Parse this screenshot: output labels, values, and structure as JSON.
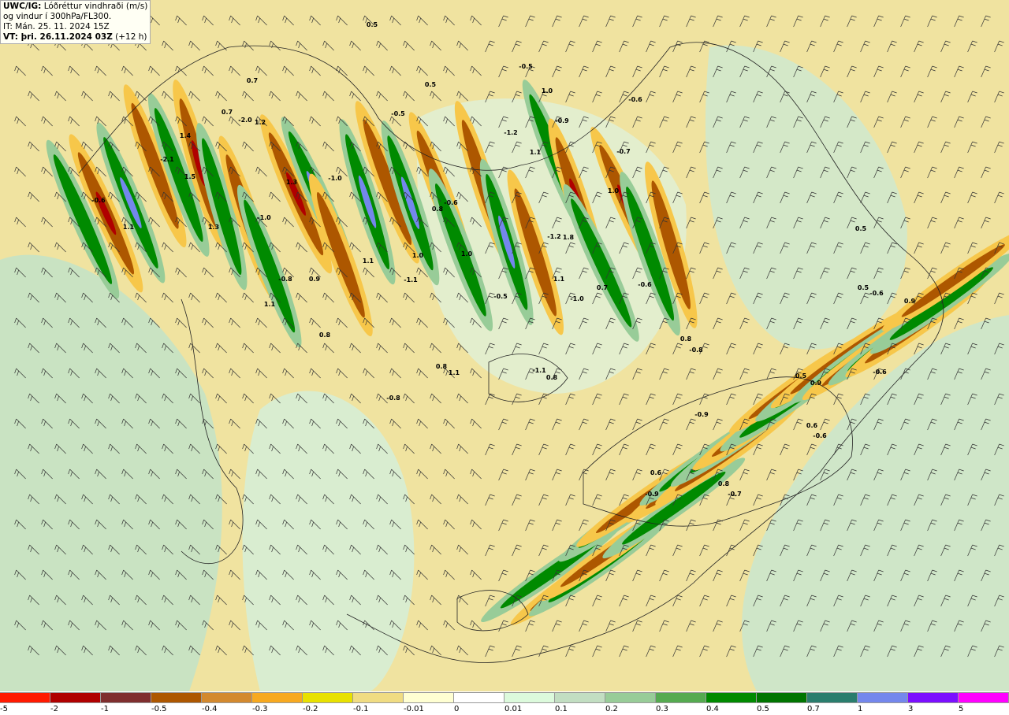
{
  "header": {
    "model_label": "UWC/IG:",
    "field_label": "Lóðréttur vindhraði (m/s)",
    "field_label_2": "og vindur í 300hPa/FL300.",
    "init_time": "IT: Mán. 25. 11. 2024 15Z",
    "valid_label": "VT: þri. 26.11.2024 03Z",
    "lead_time": "(+12 h)"
  },
  "legend": {
    "colors": [
      "#ff1a00",
      "#b00000",
      "#7f2e2e",
      "#ad5700",
      "#d3892e",
      "#f7a91f",
      "#e8e100",
      "#f0dc82",
      "#ffffd2",
      "#ffffff",
      "#dcfadc",
      "#c2dec2",
      "#98cc98",
      "#55aa50",
      "#008a00",
      "#007500",
      "#2a7d6d",
      "#7487ec",
      "#7b0fff",
      "#ff00ff"
    ],
    "labels": [
      "-5",
      "-2",
      "-1",
      "-0.5",
      "-0.4",
      "-0.3",
      "-0.2",
      "-0.1",
      "-0.01",
      "0",
      "0.01",
      "0.1",
      "0.2",
      "0.3",
      "0.4",
      "0.5",
      "0.7",
      "1",
      "3",
      "5"
    ]
  },
  "contour_labels": [
    "0.5",
    "-0.5",
    "0.5",
    "1.0",
    "-0.6",
    "0.7",
    "-0.5",
    "0.7",
    "-2.0",
    "1.2",
    "-0.9",
    "-1.2",
    "1.1",
    "-0.7",
    "1.4",
    "-2.1",
    "1.5",
    "1.3",
    "-1.0",
    "1.0",
    "-0.6",
    "0.8",
    "-0.6",
    "1.1",
    "1.3",
    "-1.0",
    "1.0",
    "1.0",
    "1.1",
    "-1.1",
    "1.8",
    "-1.2",
    "-0.8",
    "0.9",
    "0.5",
    "1.1",
    "-0.5",
    "1.1",
    "-1.0",
    "0.7",
    "-0.6",
    "0.5",
    "0.9",
    "-0.8",
    "0.8",
    "0.8",
    "-0.6",
    "0.8",
    "1.1",
    "-1.1",
    "0.8",
    "-0.8",
    "0.5",
    "0.9",
    "-0.6",
    "-0.9",
    "0.6",
    "0.8",
    "0.6",
    "-0.9",
    "-0.7",
    "-0.6"
  ]
}
